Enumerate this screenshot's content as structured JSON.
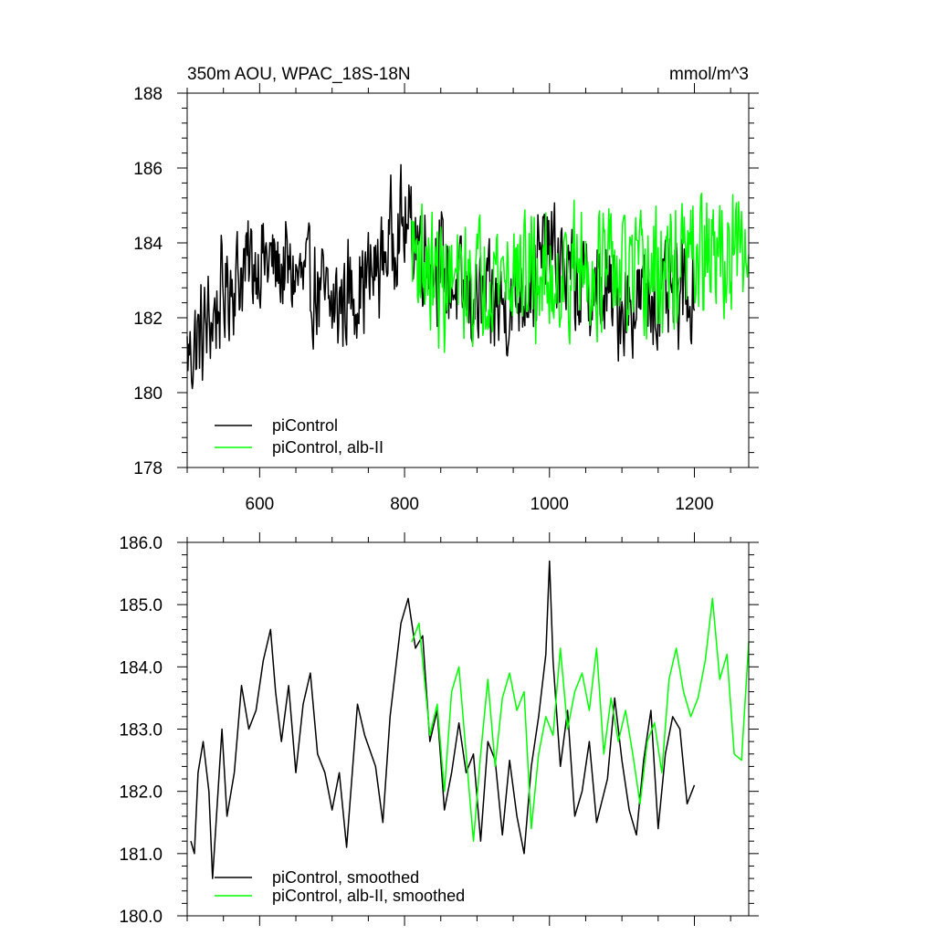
{
  "chart_data": [
    {
      "type": "line",
      "title": "350m AOU, WPAC_18S-18N",
      "units": "mmol/m^3",
      "xlim": [
        500,
        1275
      ],
      "ylim": [
        178,
        188
      ],
      "x_ticks": [
        600,
        800,
        1000,
        1200
      ],
      "x_tick_labels": [
        "600",
        "800",
        "1000",
        "1200"
      ],
      "y_ticks": [
        178,
        180,
        182,
        184,
        186,
        188
      ],
      "y_tick_labels": [
        "178",
        "180",
        "182",
        "184",
        "186",
        "188"
      ],
      "legend_position": "bottom-left",
      "series": [
        {
          "name": "piControl",
          "color": "#000000",
          "x_range": [
            500,
            1200
          ],
          "anchors": [
            [
              500,
              181.0
            ],
            [
              520,
              181.5
            ],
            [
              540,
              182.2
            ],
            [
              560,
              183.0
            ],
            [
              600,
              183.6
            ],
            [
              640,
              183.2
            ],
            [
              680,
              182.7
            ],
            [
              700,
              182.2
            ],
            [
              720,
              182.6
            ],
            [
              760,
              183.2
            ],
            [
              790,
              184.5
            ],
            [
              810,
              184.3
            ],
            [
              840,
              183.6
            ],
            [
              880,
              182.5
            ],
            [
              900,
              182.4
            ],
            [
              940,
              182.3
            ],
            [
              960,
              182.7
            ],
            [
              1000,
              183.8
            ],
            [
              1040,
              182.8
            ],
            [
              1080,
              182.6
            ],
            [
              1100,
              182.3
            ],
            [
              1140,
              182.6
            ],
            [
              1160,
              182.4
            ],
            [
              1200,
              182.8
            ]
          ],
          "noise_amplitude": 1.3
        },
        {
          "name": "piControl, alb-II",
          "color": "#00ff00",
          "x_range": [
            810,
            1275
          ],
          "anchors": [
            [
              810,
              184.0
            ],
            [
              840,
              183.0
            ],
            [
              880,
              182.8
            ],
            [
              920,
              183.3
            ],
            [
              960,
              183.2
            ],
            [
              1000,
              183.0
            ],
            [
              1040,
              183.3
            ],
            [
              1080,
              183.2
            ],
            [
              1120,
              183.0
            ],
            [
              1160,
              183.2
            ],
            [
              1200,
              183.6
            ],
            [
              1240,
              183.6
            ],
            [
              1275,
              183.5
            ]
          ],
          "noise_amplitude": 1.5
        }
      ]
    },
    {
      "type": "line",
      "title": "",
      "xlim": [
        500,
        1275
      ],
      "ylim": [
        180.0,
        186.0
      ],
      "x_ticks": [
        600,
        800,
        1000,
        1200
      ],
      "x_tick_labels": [],
      "y_ticks": [
        180,
        181,
        182,
        183,
        184,
        185,
        186
      ],
      "y_tick_labels": [
        "180.0",
        "181.0",
        "182.0",
        "183.0",
        "184.0",
        "185.0",
        "186.0"
      ],
      "legend_position": "bottom-left",
      "series": [
        {
          "name": "piControl, smoothed",
          "color": "#000000",
          "x_range": [
            505,
            1200
          ],
          "anchors": [
            [
              505,
              181.2
            ],
            [
              510,
              181.0
            ],
            [
              515,
              182.3
            ],
            [
              522,
              182.8
            ],
            [
              530,
              182.0
            ],
            [
              535,
              180.6
            ],
            [
              548,
              183.0
            ],
            [
              555,
              181.6
            ],
            [
              565,
              182.3
            ],
            [
              575,
              183.7
            ],
            [
              585,
              183.0
            ],
            [
              595,
              183.3
            ],
            [
              605,
              184.1
            ],
            [
              615,
              184.6
            ],
            [
              622,
              183.6
            ],
            [
              630,
              182.8
            ],
            [
              640,
              183.7
            ],
            [
              650,
              182.3
            ],
            [
              660,
              183.4
            ],
            [
              670,
              183.9
            ],
            [
              680,
              182.6
            ],
            [
              690,
              182.3
            ],
            [
              700,
              181.7
            ],
            [
              710,
              182.3
            ],
            [
              720,
              181.1
            ],
            [
              735,
              183.4
            ],
            [
              745,
              182.9
            ],
            [
              760,
              182.4
            ],
            [
              770,
              181.5
            ],
            [
              780,
              183.2
            ],
            [
              795,
              184.7
            ],
            [
              805,
              185.1
            ],
            [
              815,
              184.3
            ],
            [
              825,
              184.5
            ],
            [
              835,
              182.8
            ],
            [
              845,
              183.3
            ],
            [
              855,
              181.7
            ],
            [
              865,
              182.3
            ],
            [
              875,
              183.1
            ],
            [
              885,
              182.3
            ],
            [
              895,
              182.6
            ],
            [
              905,
              181.2
            ],
            [
              915,
              182.8
            ],
            [
              925,
              182.5
            ],
            [
              935,
              181.3
            ],
            [
              945,
              182.5
            ],
            [
              955,
              181.6
            ],
            [
              965,
              181.0
            ],
            [
              975,
              182.4
            ],
            [
              985,
              183.2
            ],
            [
              995,
              184.2
            ],
            [
              1000,
              185.7
            ],
            [
              1005,
              184.1
            ],
            [
              1015,
              182.4
            ],
            [
              1025,
              183.3
            ],
            [
              1035,
              181.6
            ],
            [
              1045,
              182.0
            ],
            [
              1055,
              182.8
            ],
            [
              1065,
              181.5
            ],
            [
              1080,
              182.2
            ],
            [
              1090,
              183.5
            ],
            [
              1100,
              182.5
            ],
            [
              1110,
              181.7
            ],
            [
              1120,
              181.3
            ],
            [
              1130,
              182.5
            ],
            [
              1140,
              183.3
            ],
            [
              1150,
              181.4
            ],
            [
              1160,
              182.6
            ],
            [
              1170,
              183.2
            ],
            [
              1180,
              183.0
            ],
            [
              1190,
              181.8
            ],
            [
              1200,
              182.1
            ]
          ]
        },
        {
          "name": "piControl, alb-II, smoothed",
          "color": "#00ff00",
          "x_range": [
            810,
            1275
          ],
          "anchors": [
            [
              810,
              184.4
            ],
            [
              820,
              184.7
            ],
            [
              835,
              182.9
            ],
            [
              845,
              183.4
            ],
            [
              855,
              182.0
            ],
            [
              865,
              183.6
            ],
            [
              875,
              184.0
            ],
            [
              885,
              182.6
            ],
            [
              895,
              181.2
            ],
            [
              905,
              182.6
            ],
            [
              915,
              183.8
            ],
            [
              925,
              182.4
            ],
            [
              935,
              183.5
            ],
            [
              945,
              183.9
            ],
            [
              955,
              183.3
            ],
            [
              965,
              183.6
            ],
            [
              975,
              181.4
            ],
            [
              985,
              182.6
            ],
            [
              995,
              183.2
            ],
            [
              1005,
              182.9
            ],
            [
              1015,
              184.3
            ],
            [
              1025,
              183.0
            ],
            [
              1035,
              183.6
            ],
            [
              1045,
              183.9
            ],
            [
              1055,
              183.3
            ],
            [
              1065,
              184.3
            ],
            [
              1075,
              182.6
            ],
            [
              1085,
              183.5
            ],
            [
              1095,
              182.8
            ],
            [
              1105,
              183.3
            ],
            [
              1115,
              182.6
            ],
            [
              1125,
              181.8
            ],
            [
              1135,
              182.8
            ],
            [
              1145,
              183.1
            ],
            [
              1155,
              182.3
            ],
            [
              1165,
              183.8
            ],
            [
              1175,
              184.3
            ],
            [
              1185,
              183.6
            ],
            [
              1195,
              183.2
            ],
            [
              1205,
              183.5
            ],
            [
              1215,
              184.1
            ],
            [
              1225,
              185.1
            ],
            [
              1235,
              183.8
            ],
            [
              1245,
              184.2
            ],
            [
              1255,
              182.6
            ],
            [
              1265,
              182.5
            ],
            [
              1275,
              184.4
            ]
          ]
        }
      ]
    }
  ]
}
